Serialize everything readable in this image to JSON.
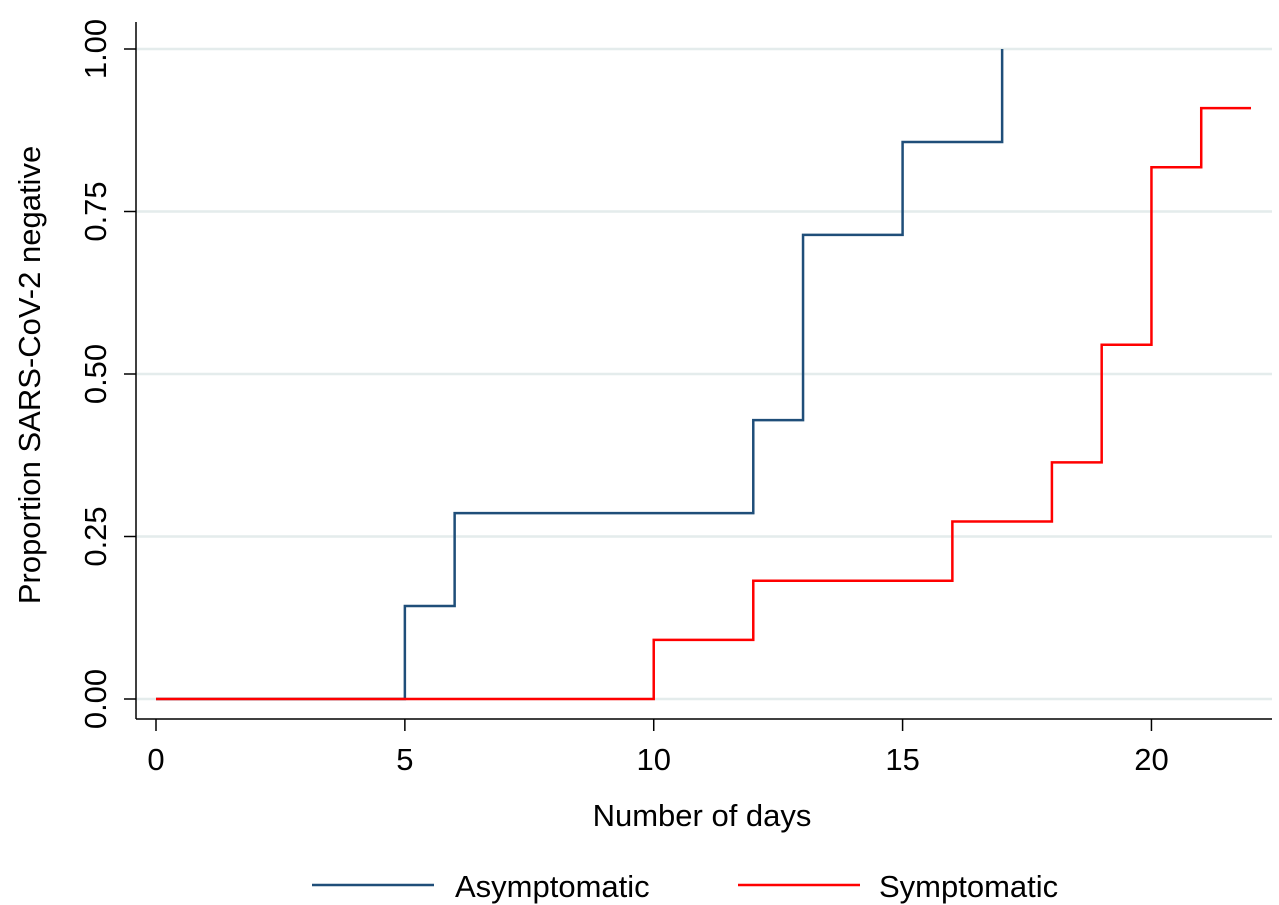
{
  "chart_data": {
    "type": "line",
    "subtype": "step",
    "xlabel": "Number of days",
    "ylabel": "Proportion SARS-CoV-2 negative",
    "xlim": [
      0,
      22
    ],
    "ylim": [
      0,
      1
    ],
    "x_ticks": [
      {
        "value": 0,
        "label": "0"
      },
      {
        "value": 5,
        "label": "5"
      },
      {
        "value": 10,
        "label": "10"
      },
      {
        "value": 15,
        "label": "15"
      },
      {
        "value": 20,
        "label": "20"
      }
    ],
    "y_ticks": [
      {
        "value": 0,
        "label": "0.00"
      },
      {
        "value": 0.25,
        "label": "0.25"
      },
      {
        "value": 0.5,
        "label": "0.50"
      },
      {
        "value": 0.75,
        "label": "0.75"
      },
      {
        "value": 1,
        "label": "1.00"
      }
    ],
    "grid": "horizontal",
    "legend_position": "bottom",
    "series": [
      {
        "name": "Asymptomatic",
        "color": "#1f4e79",
        "x": [
          0,
          5,
          6,
          12,
          13,
          15,
          17
        ],
        "y": [
          0,
          0.143,
          0.286,
          0.429,
          0.714,
          0.857,
          1.0
        ]
      },
      {
        "name": "Symptomatic",
        "color": "#ff0000",
        "x": [
          0,
          10,
          12,
          16,
          18,
          19,
          20,
          21,
          22
        ],
        "y": [
          0,
          0.091,
          0.182,
          0.273,
          0.364,
          0.545,
          0.818,
          0.909,
          0.909
        ]
      }
    ]
  }
}
